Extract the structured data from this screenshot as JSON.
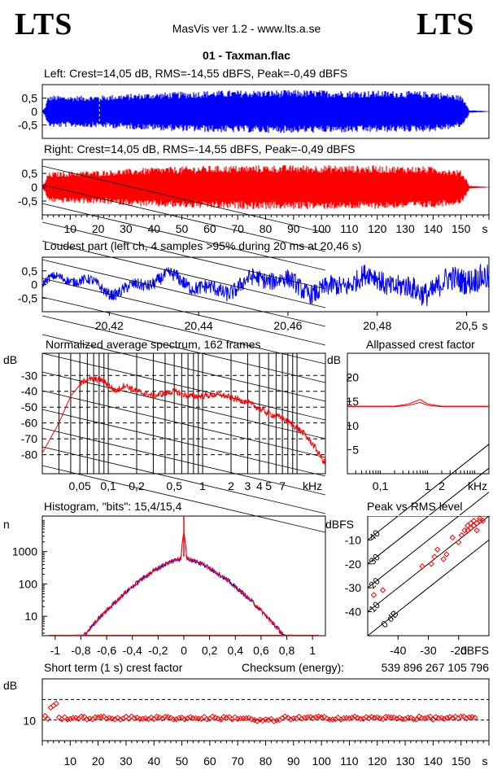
{
  "header": {
    "logo_left": "LTS",
    "logo_right": "LTS",
    "app_title": "MasVis ver 1.2 - www.lts.a.se",
    "file_title": "01 - Taxman.flac"
  },
  "colors": {
    "left": "#0000ff",
    "right": "#ff0000",
    "allpass": "#ff0000",
    "peak_rms": "#ff0000"
  },
  "chart_data": [
    {
      "type": "area",
      "title": "Left: Crest=14,05 dB, RMS=-14,55 dBFS, Peak=-0,49 dBFS",
      "series": [
        {
          "name": "Left",
          "color": "#0000ff"
        }
      ],
      "ylim": [
        -1,
        1
      ],
      "yticks": [
        "0,5",
        "0",
        "-0,5"
      ],
      "envelope": [
        [
          0,
          0.02
        ],
        [
          1,
          0.15
        ],
        [
          2,
          0.55
        ],
        [
          4,
          0.6
        ],
        [
          10,
          0.58
        ],
        [
          20,
          0.6
        ],
        [
          40,
          0.7
        ],
        [
          60,
          0.78
        ],
        [
          80,
          0.8
        ],
        [
          100,
          0.8
        ],
        [
          120,
          0.78
        ],
        [
          140,
          0.75
        ],
        [
          150,
          0.6
        ],
        [
          152,
          0.3
        ],
        [
          153,
          0.05
        ],
        [
          160,
          0.01
        ]
      ],
      "xlim": [
        0,
        160
      ],
      "marker_x": 20.46
    },
    {
      "type": "area",
      "title": "Right: Crest=14,05 dB, RMS=-14,55 dBFS, Peak=-0,49 dBFS",
      "series": [
        {
          "name": "Right",
          "color": "#ff0000"
        }
      ],
      "ylim": [
        -1,
        1
      ],
      "yticks": [
        "0,5",
        "0",
        "-0,5"
      ],
      "envelope": [
        [
          0,
          0.02
        ],
        [
          1,
          0.2
        ],
        [
          2,
          0.5
        ],
        [
          4,
          0.55
        ],
        [
          10,
          0.58
        ],
        [
          20,
          0.6
        ],
        [
          40,
          0.72
        ],
        [
          60,
          0.78
        ],
        [
          80,
          0.8
        ],
        [
          100,
          0.8
        ],
        [
          120,
          0.78
        ],
        [
          140,
          0.75
        ],
        [
          150,
          0.6
        ],
        [
          152,
          0.3
        ],
        [
          153,
          0.05
        ],
        [
          160,
          0.01
        ]
      ],
      "xlim": [
        0,
        160
      ],
      "xticks": [
        "10",
        "20",
        "30",
        "40",
        "50",
        "60",
        "70",
        "80",
        "90",
        "100",
        "110",
        "120",
        "130",
        "140",
        "150"
      ],
      "xunit": "s"
    },
    {
      "type": "line",
      "title": "Loudest part (left  ch, 4 samples >95% during 20 ms at 20,46 s)",
      "xlim": [
        20.405,
        20.505
      ],
      "ylim": [
        -1,
        1
      ],
      "yticks": [
        "0,5",
        "0",
        "-0,5"
      ],
      "xticks": [
        "20,42",
        "20,44",
        "20,46",
        "20,48",
        "20,5"
      ],
      "xunit": "s",
      "series": [
        {
          "name": "Left",
          "color": "#0000ff"
        }
      ]
    },
    {
      "type": "line",
      "title": "Normalized average spectrum, 162 frames",
      "ylabel": "dB",
      "xunit": "kHz",
      "yticks": [
        "-30",
        "-40",
        "-50",
        "-60",
        "-70",
        "-80"
      ],
      "xticks": [
        "0,05",
        "0,1",
        "0,2",
        "0,5",
        "1",
        "2",
        "3",
        "4",
        "5",
        "7"
      ],
      "x": [
        0.02,
        0.03,
        0.04,
        0.05,
        0.06,
        0.07,
        0.08,
        0.09,
        0.1,
        0.12,
        0.15,
        0.2,
        0.3,
        0.5,
        0.7,
        1,
        1.5,
        2,
        3,
        4,
        5,
        7,
        10,
        12,
        15,
        20
      ],
      "y": [
        -79,
        -60,
        -43,
        -36,
        -32,
        -33,
        -32,
        -34,
        -36,
        -40,
        -36,
        -40,
        -43,
        -40,
        -43,
        -43,
        -42,
        -44,
        -47,
        -51,
        -54,
        -57,
        -63,
        -67,
        -74,
        -86
      ],
      "ylim": [
        -92,
        -16
      ],
      "xlim": [
        0.02,
        20
      ],
      "series": [
        {
          "name": "spectrum",
          "color": "#ff0000"
        }
      ]
    },
    {
      "type": "line",
      "title": "Allpassed crest factor",
      "ylabel": "dB",
      "xunit": "kHz",
      "yticks": [
        "20",
        "15",
        "10",
        "5"
      ],
      "xticks": [
        "0,1",
        "1",
        "2"
      ],
      "ylim": [
        0,
        25
      ],
      "x": [
        0.02,
        0.05,
        0.1,
        0.2,
        0.4,
        0.7,
        1,
        2,
        4,
        10,
        20
      ],
      "series": [
        {
          "name": "Left",
          "color": "#ff0000",
          "values": [
            14,
            14,
            14,
            14,
            14.5,
            15.4,
            14.5,
            14,
            14,
            14,
            14
          ]
        },
        {
          "name": "Right",
          "color": "#ff0000",
          "values": [
            13.9,
            13.9,
            13.9,
            13.9,
            14.2,
            14.8,
            14.2,
            13.9,
            13.9,
            13.9,
            13.9
          ]
        }
      ]
    },
    {
      "type": "line",
      "title": "Histogram, \"bits\": 15,4/15,4",
      "ylabel": "n",
      "yticks": [
        "1000",
        "100",
        "10"
      ],
      "xticks": [
        "-1",
        "-0,8",
        "-0,6",
        "-0,4",
        "-0,2",
        "0",
        "0,2",
        "0,4",
        "0,6",
        "0,8",
        "1"
      ],
      "xlim": [
        -1.1,
        1.1
      ],
      "series": [
        {
          "name": "Left",
          "color": "#0000ff"
        },
        {
          "name": "Right",
          "color": "#ff0000"
        }
      ]
    },
    {
      "type": "scatter",
      "title": "Peak vs RMS level",
      "ylabel": "dBFS",
      "xlabel": "dBFS",
      "yticks": [
        "-10",
        "-20",
        "-30",
        "-40"
      ],
      "xticks": [
        "-40",
        "-30",
        "-20"
      ],
      "diag_labels": [
        "40",
        "30",
        "20",
        "10",
        "0 dB"
      ],
      "xlim": [
        -50,
        -10
      ],
      "ylim": [
        -50,
        0
      ],
      "points": [
        [
          -48,
          -33
        ],
        [
          -45,
          -31
        ],
        [
          -32,
          -21
        ],
        [
          -29,
          -20
        ],
        [
          -28,
          -17
        ],
        [
          -27,
          -14
        ],
        [
          -25,
          -18
        ],
        [
          -24,
          -16
        ],
        [
          -22,
          -9
        ],
        [
          -20,
          -11
        ],
        [
          -19,
          -8
        ],
        [
          -18,
          -6
        ],
        [
          -17,
          -4
        ],
        [
          -16,
          -3
        ],
        [
          -15,
          -4
        ],
        [
          -15,
          -2
        ],
        [
          -14,
          -3
        ],
        [
          -13,
          -2
        ],
        [
          -13,
          -1
        ],
        [
          -14,
          -6
        ],
        [
          -16,
          -5
        ],
        [
          -17,
          -6
        ],
        [
          -12,
          -2
        ]
      ]
    },
    {
      "type": "scatter",
      "title": "Short term (1 s) crest factor",
      "checksum_label": "Checksum (energy):",
      "checksum_value": "539 896 267 105 796",
      "ylabel": "dB",
      "yticks": [
        "10"
      ],
      "xticks": [
        "10",
        "20",
        "30",
        "40",
        "50",
        "60",
        "70",
        "80",
        "90",
        "100",
        "110",
        "120",
        "130",
        "140",
        "150"
      ],
      "xunit": "s",
      "xlim": [
        0,
        160
      ]
    }
  ]
}
